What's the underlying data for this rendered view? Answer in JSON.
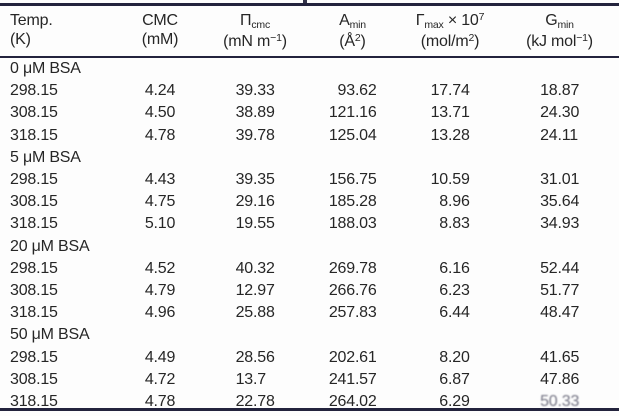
{
  "table": {
    "title_semantic": "surface-parameters-table",
    "columns": [
      {
        "id": "temp",
        "align": "left",
        "line1": [
          {
            "t": "Temp."
          }
        ],
        "line2": [
          {
            "t": "(K)"
          }
        ]
      },
      {
        "id": "cmc",
        "align": "center",
        "line1": [
          {
            "t": "CMC"
          }
        ],
        "line2": [
          {
            "t": "(mM)"
          }
        ]
      },
      {
        "id": "pi-cmc",
        "align": "center",
        "line1": [
          {
            "t": "Π"
          },
          {
            "t": "cmc",
            "s": "sub"
          }
        ],
        "line2": [
          {
            "t": "(mN m"
          },
          {
            "t": "−1",
            "s": "sup"
          },
          {
            "t": ")"
          }
        ]
      },
      {
        "id": "a-min",
        "align": "center",
        "line1": [
          {
            "t": "A"
          },
          {
            "t": "min",
            "s": "sub"
          }
        ],
        "line2": [
          {
            "t": "(Å"
          },
          {
            "t": "2",
            "s": "sup"
          },
          {
            "t": ")"
          }
        ]
      },
      {
        "id": "gamma-max",
        "align": "center",
        "line1": [
          {
            "t": "Γ"
          },
          {
            "t": "max",
            "s": "sub"
          },
          {
            "t": " × 10"
          },
          {
            "t": "7",
            "s": "sup"
          }
        ],
        "line2": [
          {
            "t": "(mol/m"
          },
          {
            "t": "2",
            "s": "sup"
          },
          {
            "t": ")"
          }
        ]
      },
      {
        "id": "g-min",
        "align": "center",
        "line1": [
          {
            "t": "G"
          },
          {
            "t": "min",
            "s": "sub"
          }
        ],
        "line2": [
          {
            "t": "(kJ mol"
          },
          {
            "t": "−1",
            "s": "sup"
          },
          {
            "t": ")"
          }
        ]
      }
    ],
    "rows": [
      {
        "type": "section",
        "label": "0 μM BSA"
      },
      {
        "type": "data",
        "cells": [
          "298.15",
          "4.24",
          "39.33",
          "93.62",
          "17.74",
          "18.87"
        ]
      },
      {
        "type": "data",
        "cells": [
          "308.15",
          "4.50",
          "38.89",
          "121.16",
          "13.71",
          "24.30"
        ]
      },
      {
        "type": "data",
        "cells": [
          "318.15",
          "4.78",
          "39.78",
          "125.04",
          "13.28",
          "24.11"
        ]
      },
      {
        "type": "section",
        "label": "5 μM BSA"
      },
      {
        "type": "data",
        "cells": [
          "298.15",
          "4.43",
          "39.35",
          "156.75",
          "10.59",
          "31.01"
        ]
      },
      {
        "type": "data",
        "cells": [
          "308.15",
          "4.75",
          "29.16",
          "185.28",
          "8.96",
          "35.64"
        ]
      },
      {
        "type": "data",
        "cells": [
          "318.15",
          "5.10",
          "19.55",
          "188.03",
          "8.83",
          "34.93"
        ]
      },
      {
        "type": "section",
        "label": "20 μM BSA"
      },
      {
        "type": "data",
        "cells": [
          "298.15",
          "4.52",
          "40.32",
          "269.78",
          "6.16",
          "52.44"
        ]
      },
      {
        "type": "data",
        "cells": [
          "308.15",
          "4.79",
          "12.97",
          "266.76",
          "6.23",
          "51.77"
        ]
      },
      {
        "type": "data",
        "cells": [
          "318.15",
          "4.96",
          "25.88",
          "257.83",
          "6.44",
          "48.47"
        ]
      },
      {
        "type": "section",
        "label": "50 μM BSA"
      },
      {
        "type": "data",
        "cells": [
          "298.15",
          "4.49",
          "28.56",
          "202.61",
          "8.20",
          "41.65"
        ]
      },
      {
        "type": "data",
        "cells": [
          "308.15",
          "4.72",
          "13.7",
          "241.57",
          "6.87",
          "47.86"
        ]
      },
      {
        "type": "data",
        "cells": [
          "318.15",
          "4.78",
          "22.78",
          "264.02",
          "6.29",
          "50.33"
        ],
        "degraded_cols": [
          5
        ]
      }
    ]
  },
  "colors": {
    "rule": "#23233d",
    "text": "#262626",
    "background": "#fdfdfd"
  }
}
